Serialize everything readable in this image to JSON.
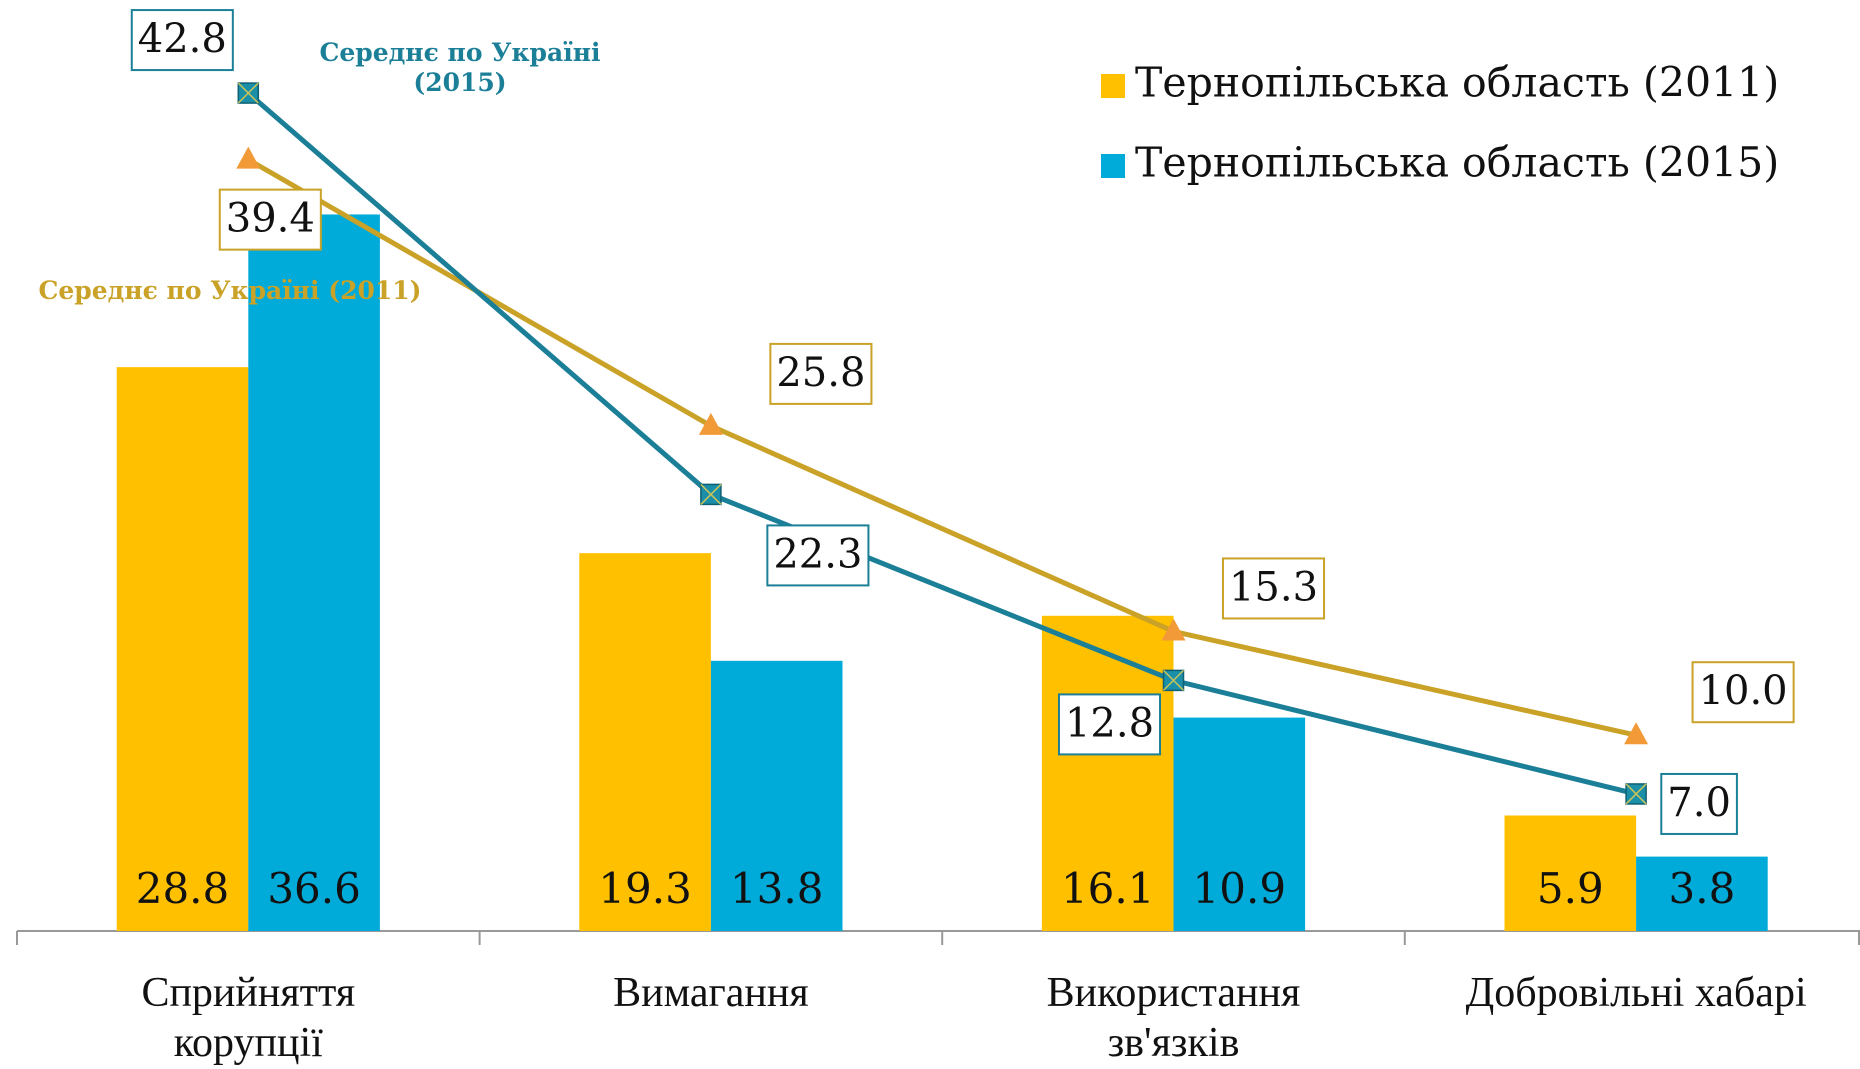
{
  "chart_data": {
    "type": "bar+line",
    "categories": [
      "Сприйняття\nкорупції",
      "Вимагання",
      "Використання\nзв'язків",
      "Добровільні хабарі"
    ],
    "ylim": [
      0,
      45
    ],
    "legend": "top-right",
    "series": [
      {
        "name": "Тернопільська область (2011)",
        "type": "bar",
        "color": "#FFC000",
        "values": [
          28.8,
          19.3,
          16.1,
          5.9
        ],
        "value_labels": [
          "28.8",
          "19.3",
          "16.1",
          "5.9"
        ]
      },
      {
        "name": "Тернопільська область (2015)",
        "type": "bar",
        "color": "#00ABD9",
        "values": [
          36.6,
          13.8,
          10.9,
          3.8
        ],
        "value_labels": [
          "36.6",
          "13.8",
          "10.9",
          "3.8"
        ]
      },
      {
        "name": "Середнє по Україні (2011)",
        "type": "line",
        "color": "#C9A227",
        "marker": "triangle",
        "marker_color": "#F29A38",
        "values": [
          39.4,
          25.8,
          15.3,
          10.0
        ],
        "value_labels": [
          "39.4",
          "25.8",
          "15.3",
          "10.0"
        ]
      },
      {
        "name": "Середнє по Україні (2015)",
        "type": "line",
        "color": "#1B7F98",
        "marker": "square-x",
        "marker_color": "#1B8FA8",
        "values": [
          42.8,
          22.3,
          12.8,
          7.0
        ],
        "value_labels": [
          "42.8",
          "22.3",
          "12.8",
          "7.0"
        ]
      }
    ]
  }
}
